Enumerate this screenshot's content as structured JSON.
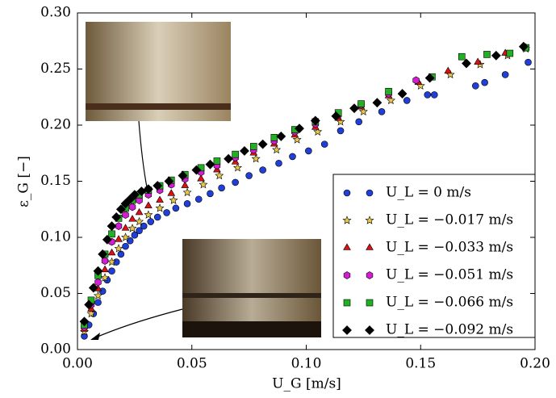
{
  "chart_data": {
    "type": "scatter",
    "x_label": "U_G [m/s]",
    "y_label": "ε_G [−]",
    "xlim": [
      0,
      0.2
    ],
    "ylim": [
      0,
      0.3
    ],
    "xticks": [
      {
        "value": 0,
        "label": "0.00"
      },
      0.05,
      {
        "value": 0.1,
        "label": "0.10"
      },
      0.15,
      {
        "value": 0.2,
        "label": "0.20"
      }
    ],
    "yticks": [
      {
        "value": 0,
        "label": "0.00"
      },
      0.05,
      {
        "value": 0.1,
        "label": "0.10"
      },
      0.15,
      {
        "value": 0.2,
        "label": "0.20"
      },
      0.25,
      {
        "value": 0.3,
        "label": "0.30"
      }
    ],
    "legend": "lower right",
    "series": [
      {
        "name": "U_L = 0 m/s",
        "color": "#1f3fd6",
        "marker": "circle",
        "x": [
          0.003,
          0.005,
          0.007,
          0.009,
          0.011,
          0.013,
          0.015,
          0.017,
          0.019,
          0.021,
          0.023,
          0.025,
          0.027,
          0.029,
          0.032,
          0.035,
          0.039,
          0.043,
          0.048,
          0.053,
          0.058,
          0.063,
          0.069,
          0.075,
          0.081,
          0.088,
          0.094,
          0.101,
          0.108,
          0.115,
          0.123,
          0.133,
          0.144,
          0.153,
          0.156,
          0.174,
          0.178,
          0.187,
          0.197
        ],
        "values": [
          0.012,
          0.022,
          0.032,
          0.042,
          0.052,
          0.062,
          0.07,
          0.078,
          0.085,
          0.092,
          0.097,
          0.102,
          0.106,
          0.11,
          0.114,
          0.118,
          0.122,
          0.126,
          0.13,
          0.134,
          0.139,
          0.144,
          0.149,
          0.155,
          0.16,
          0.166,
          0.172,
          0.177,
          0.183,
          0.195,
          0.203,
          0.212,
          0.222,
          0.227,
          0.227,
          0.235,
          0.238,
          0.245,
          0.256
        ]
      },
      {
        "name": "U_L = −0.017 m/s",
        "color": "#e8c84a",
        "marker": "star",
        "x": [
          0.003,
          0.006,
          0.009,
          0.012,
          0.015,
          0.018,
          0.021,
          0.024,
          0.027,
          0.031,
          0.036,
          0.042,
          0.048,
          0.055,
          0.062,
          0.07,
          0.078,
          0.087,
          0.096,
          0.105,
          0.115,
          0.125,
          0.137,
          0.15,
          0.163,
          0.176,
          0.188,
          0.196
        ],
        "values": [
          0.016,
          0.032,
          0.048,
          0.064,
          0.078,
          0.09,
          0.1,
          0.108,
          0.114,
          0.12,
          0.126,
          0.133,
          0.14,
          0.147,
          0.155,
          0.162,
          0.17,
          0.178,
          0.187,
          0.194,
          0.203,
          0.212,
          0.222,
          0.235,
          0.245,
          0.254,
          0.262,
          0.268
        ]
      },
      {
        "name": "U_L = −0.033 m/s",
        "color": "#dd1111",
        "marker": "triangle",
        "x": [
          0.003,
          0.006,
          0.009,
          0.012,
          0.015,
          0.018,
          0.021,
          0.024,
          0.027,
          0.031,
          0.036,
          0.041,
          0.047,
          0.054,
          0.061,
          0.069,
          0.077,
          0.086,
          0.095,
          0.104,
          0.114,
          0.124,
          0.136,
          0.149,
          0.162,
          0.175,
          0.187,
          0.196
        ],
        "values": [
          0.018,
          0.036,
          0.054,
          0.071,
          0.086,
          0.098,
          0.108,
          0.116,
          0.122,
          0.128,
          0.133,
          0.139,
          0.146,
          0.152,
          0.16,
          0.167,
          0.175,
          0.183,
          0.191,
          0.198,
          0.206,
          0.216,
          0.226,
          0.238,
          0.248,
          0.256,
          0.264,
          0.269
        ]
      },
      {
        "name": "U_L = −0.051 m/s",
        "color": "#d21ed2",
        "marker": "hexagon",
        "x": [
          0.003,
          0.006,
          0.009,
          0.012,
          0.015,
          0.018,
          0.021,
          0.024,
          0.027,
          0.031,
          0.036,
          0.041,
          0.047,
          0.054,
          0.061,
          0.069,
          0.077,
          0.086,
          0.095,
          0.104,
          0.114,
          0.124,
          0.136,
          0.148
        ],
        "values": [
          0.02,
          0.04,
          0.06,
          0.079,
          0.096,
          0.11,
          0.12,
          0.127,
          0.133,
          0.138,
          0.142,
          0.147,
          0.152,
          0.158,
          0.164,
          0.171,
          0.178,
          0.186,
          0.194,
          0.201,
          0.209,
          0.218,
          0.228,
          0.24
        ]
      },
      {
        "name": "U_L = −0.066 m/s",
        "color": "#22b022",
        "marker": "square",
        "x": [
          0.003,
          0.006,
          0.009,
          0.012,
          0.015,
          0.018,
          0.021,
          0.024,
          0.027,
          0.031,
          0.036,
          0.041,
          0.047,
          0.054,
          0.061,
          0.069,
          0.077,
          0.086,
          0.095,
          0.104,
          0.114,
          0.124,
          0.136,
          0.155,
          0.168,
          0.179,
          0.189,
          0.196
        ],
        "values": [
          0.022,
          0.044,
          0.066,
          0.085,
          0.103,
          0.117,
          0.126,
          0.133,
          0.138,
          0.142,
          0.146,
          0.151,
          0.156,
          0.162,
          0.168,
          0.174,
          0.181,
          0.189,
          0.196,
          0.203,
          0.211,
          0.219,
          0.23,
          0.243,
          0.261,
          0.263,
          0.264,
          0.269
        ]
      },
      {
        "name": "U_L = −0.092 m/s",
        "color": "#000000",
        "marker": "diamond",
        "x": [
          0.003,
          0.005,
          0.007,
          0.009,
          0.011,
          0.013,
          0.015,
          0.017,
          0.019,
          0.021,
          0.023,
          0.025,
          0.028,
          0.031,
          0.035,
          0.04,
          0.046,
          0.052,
          0.058,
          0.066,
          0.073,
          0.081,
          0.089,
          0.097,
          0.104,
          0.113,
          0.121,
          0.131,
          0.142,
          0.154,
          0.17,
          0.183,
          0.195
        ],
        "values": [
          0.025,
          0.04,
          0.055,
          0.07,
          0.085,
          0.098,
          0.11,
          0.118,
          0.125,
          0.13,
          0.134,
          0.138,
          0.141,
          0.143,
          0.146,
          0.15,
          0.155,
          0.16,
          0.165,
          0.17,
          0.177,
          0.183,
          0.19,
          0.197,
          0.204,
          0.208,
          0.215,
          0.22,
          0.228,
          0.242,
          0.255,
          0.262,
          0.27
        ]
      }
    ]
  }
}
